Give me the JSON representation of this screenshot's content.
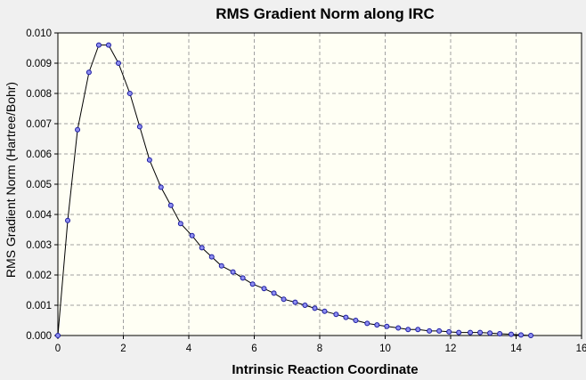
{
  "chart_data": {
    "type": "line",
    "title": "RMS Gradient Norm along IRC",
    "xlabel": "Intrinsic Reaction Coordinate",
    "ylabel": "RMS Gradient Norm (Hartree/Bohr)",
    "xlim": [
      0,
      16
    ],
    "ylim": [
      0,
      0.01
    ],
    "xticks": [
      "0",
      "2",
      "4",
      "6",
      "8",
      "10",
      "12",
      "14",
      "16"
    ],
    "yticks": [
      "0.000",
      "0.001",
      "0.002",
      "0.003",
      "0.004",
      "0.005",
      "0.006",
      "0.007",
      "0.008",
      "0.009",
      "0.010"
    ],
    "grid": true,
    "legend": "none",
    "colors": {
      "plot_background": "#fffff4",
      "page_background": "#f0f0f0",
      "line": "#000000",
      "marker_stroke": "#1a1aa0",
      "marker_fill": "#8e8ef0",
      "grid": "#a0a0a0"
    },
    "series": [
      {
        "x": [
          0.0,
          0.3,
          0.6,
          0.95,
          1.25,
          1.55,
          1.85,
          2.2,
          2.5,
          2.8,
          3.15,
          3.45,
          3.75,
          4.1,
          4.4,
          4.7,
          5.0,
          5.35,
          5.65,
          5.95,
          6.3,
          6.6,
          6.9,
          7.25,
          7.55,
          7.85,
          8.15,
          8.5,
          8.8,
          9.1,
          9.45,
          9.75,
          10.05,
          10.4,
          10.7,
          11.0,
          11.35,
          11.65,
          11.95,
          12.25,
          12.6,
          12.9,
          13.2,
          13.5,
          13.85,
          14.15,
          14.45
        ],
        "y": [
          0.0,
          0.0038,
          0.0068,
          0.0087,
          0.0096,
          0.0096,
          0.009,
          0.008,
          0.0069,
          0.0058,
          0.0049,
          0.0043,
          0.0037,
          0.0033,
          0.0029,
          0.0026,
          0.0023,
          0.0021,
          0.0019,
          0.0017,
          0.00155,
          0.0014,
          0.0012,
          0.0011,
          0.001,
          0.0009,
          0.0008,
          0.0007,
          0.0006,
          0.0005,
          0.0004,
          0.00035,
          0.0003,
          0.00025,
          0.0002,
          0.0002,
          0.00015,
          0.00015,
          0.00012,
          0.0001,
          0.0001,
          0.0001,
          8e-05,
          6e-05,
          4e-05,
          2e-05,
          0.0
        ]
      }
    ]
  }
}
